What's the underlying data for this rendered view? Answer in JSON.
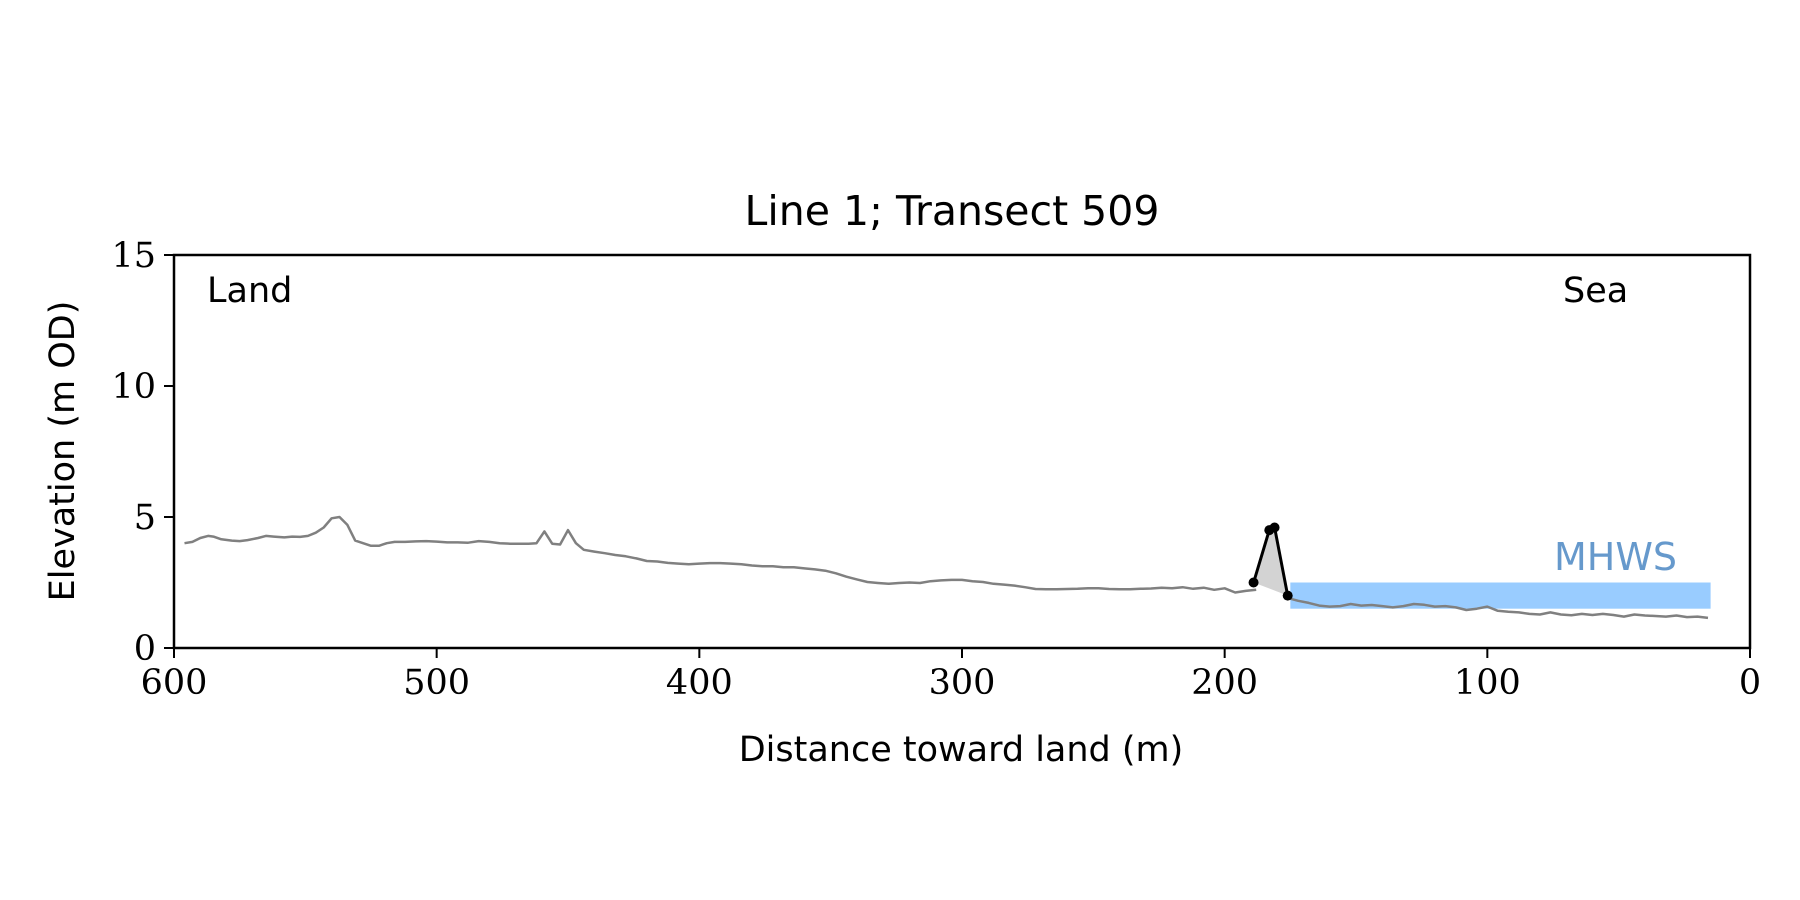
{
  "chart_data": {
    "type": "line",
    "title": "Line 1; Transect 509",
    "xlabel": "Distance toward land (m)",
    "ylabel": "Elevation (m OD)",
    "xlim": [
      600,
      0
    ],
    "ylim": [
      0,
      15
    ],
    "x_ticks": [
      600,
      500,
      400,
      300,
      200,
      100,
      0
    ],
    "y_ticks": [
      0,
      5,
      10,
      15
    ],
    "grid": false,
    "annotations": {
      "land": "Land",
      "sea": "Sea",
      "mhws": "MHWS"
    },
    "mhws_band": {
      "x_start": 175,
      "x_end": 15,
      "y_low": 1.5,
      "y_high": 2.5
    },
    "profile": {
      "x": [
        596,
        593,
        590,
        587,
        585,
        582,
        578,
        575,
        572,
        568,
        565,
        562,
        558,
        555,
        552,
        549,
        546,
        543,
        540,
        537,
        534,
        531,
        528,
        525,
        522,
        519,
        516,
        512,
        508,
        504,
        500,
        496,
        492,
        488,
        484,
        480,
        476,
        472,
        468,
        465,
        462,
        459,
        456,
        453,
        450,
        447,
        444,
        440,
        436,
        432,
        428,
        424,
        420,
        416,
        412,
        408,
        404,
        400,
        396,
        392,
        388,
        384,
        380,
        376,
        372,
        368,
        364,
        360,
        356,
        352,
        348,
        344,
        340,
        336,
        332,
        328,
        324,
        320,
        316,
        312,
        308,
        304,
        300,
        296,
        292,
        288,
        284,
        280,
        276,
        272,
        268,
        264,
        260,
        256,
        252,
        248,
        244,
        240,
        236,
        232,
        228,
        224,
        220,
        216,
        212,
        208,
        204,
        200,
        196,
        192,
        188
      ],
      "y": [
        4.0,
        4.05,
        4.2,
        4.28,
        4.25,
        4.15,
        4.1,
        4.08,
        4.12,
        4.2,
        4.28,
        4.25,
        4.22,
        4.25,
        4.24,
        4.28,
        4.4,
        4.6,
        4.95,
        5.0,
        4.7,
        4.1,
        4.0,
        3.9,
        3.9,
        4.0,
        4.05,
        4.05,
        4.07,
        4.08,
        4.06,
        4.03,
        4.03,
        4.02,
        4.08,
        4.05,
        4.0,
        3.98,
        3.98,
        3.98,
        4.0,
        4.45,
        3.98,
        3.95,
        4.5,
        4.0,
        3.75,
        3.68,
        3.62,
        3.55,
        3.5,
        3.42,
        3.32,
        3.3,
        3.25,
        3.22,
        3.2,
        3.22,
        3.24,
        3.24,
        3.22,
        3.2,
        3.15,
        3.12,
        3.12,
        3.08,
        3.08,
        3.04,
        3.0,
        2.95,
        2.85,
        2.72,
        2.62,
        2.52,
        2.48,
        2.45,
        2.48,
        2.5,
        2.48,
        2.55,
        2.58,
        2.6,
        2.6,
        2.55,
        2.52,
        2.45,
        2.42,
        2.38,
        2.32,
        2.25,
        2.24,
        2.24,
        2.25,
        2.26,
        2.28,
        2.28,
        2.25,
        2.24,
        2.24,
        2.26,
        2.27,
        2.3,
        2.28,
        2.32,
        2.26,
        2.3,
        2.22,
        2.28,
        2.12,
        2.18,
        2.22
      ]
    },
    "sea_profile": {
      "x": [
        175,
        172,
        168,
        164,
        160,
        156,
        152,
        148,
        144,
        140,
        136,
        132,
        128,
        124,
        120,
        116,
        112,
        108,
        104,
        100,
        96,
        92,
        88,
        84,
        80,
        76,
        72,
        68,
        64,
        60,
        56,
        52,
        48,
        44,
        40,
        36,
        32,
        28,
        24,
        20,
        16
      ],
      "y": [
        1.88,
        1.8,
        1.72,
        1.62,
        1.58,
        1.6,
        1.68,
        1.62,
        1.64,
        1.6,
        1.55,
        1.6,
        1.68,
        1.65,
        1.58,
        1.6,
        1.55,
        1.45,
        1.5,
        1.58,
        1.42,
        1.38,
        1.36,
        1.3,
        1.28,
        1.36,
        1.28,
        1.25,
        1.3,
        1.26,
        1.3,
        1.26,
        1.2,
        1.28,
        1.24,
        1.22,
        1.2,
        1.24,
        1.18,
        1.2,
        1.15
      ]
    },
    "dune": {
      "x": [
        189,
        183,
        181,
        176
      ],
      "y": [
        2.5,
        4.5,
        4.6,
        2.0
      ]
    }
  }
}
